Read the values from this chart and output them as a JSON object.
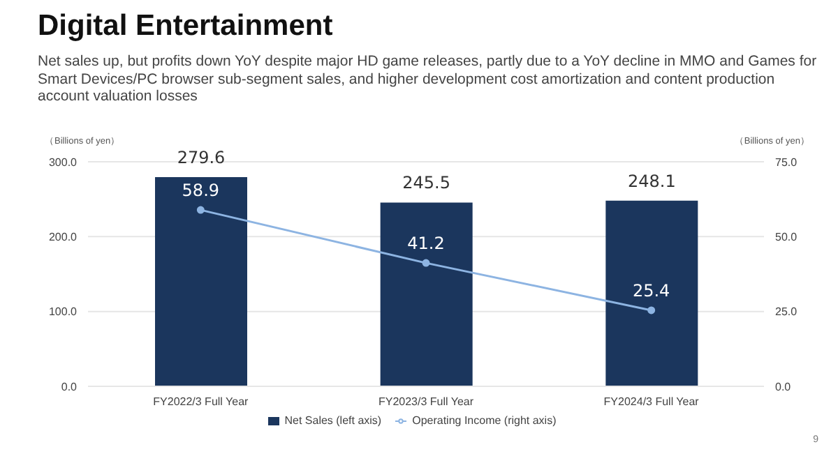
{
  "chart_data": {
    "type": "bar",
    "title": "Digital Entertainment",
    "subtitle": "Net sales up, but profits down YoY despite major HD game releases, partly due to a YoY decline in MMO and Games for Smart Devices/PC browser sub-segment sales, and higher development cost amortization and content production account valuation losses",
    "ylabel": "（Billions of yen）",
    "y2label": "（Billions of yen）",
    "categories": [
      "FY2022/3 Full Year",
      "FY2023/3 Full Year",
      "FY2024/3 Full Year"
    ],
    "series": [
      {
        "name": "Net Sales (left axis)",
        "color": "#1b365d",
        "values": [
          279.6,
          245.5,
          248.1
        ]
      },
      {
        "name": "Operating Income (right axis)",
        "type": "line",
        "axis": "y2",
        "color": "#8db4e2",
        "values": [
          58.9,
          41.2,
          25.4
        ]
      }
    ],
    "ylim": [
      0,
      300
    ],
    "yticks": [
      {
        "value": 0,
        "label": "0.0"
      },
      {
        "value": 100,
        "label": "100.0"
      },
      {
        "value": 200,
        "label": "200.0"
      },
      {
        "value": 300,
        "label": "300.0"
      }
    ],
    "y2lim": [
      0,
      75
    ],
    "y2ticks": [
      {
        "value": 0,
        "label": "0.0"
      },
      {
        "value": 25,
        "label": "25.0"
      },
      {
        "value": 50,
        "label": "50.0"
      },
      {
        "value": 75,
        "label": "75.0"
      }
    ],
    "grid": "y",
    "legend": "bottom",
    "marker": "circle",
    "data_labels": true,
    "annotations": [
      "9"
    ]
  }
}
